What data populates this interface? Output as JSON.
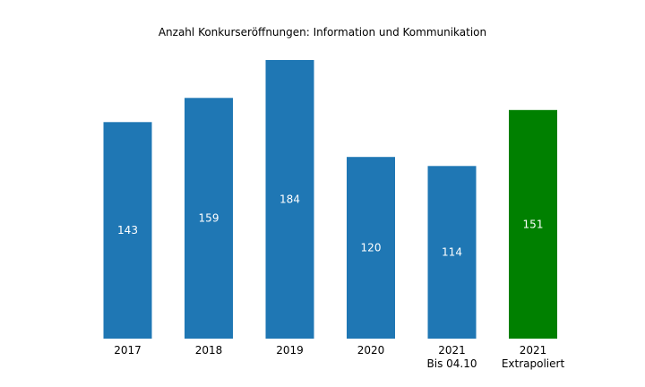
{
  "chart_data": {
    "type": "bar",
    "title": "Anzahl Konkurseröffnungen: Information und Kommunikation",
    "categories": [
      {
        "line1": "2017",
        "line2": ""
      },
      {
        "line1": "2018",
        "line2": ""
      },
      {
        "line1": "2019",
        "line2": ""
      },
      {
        "line1": "2020",
        "line2": ""
      },
      {
        "line1": "2021",
        "line2": "Bis 04.10"
      },
      {
        "line1": "2021",
        "line2": "Extrapoliert"
      }
    ],
    "values": [
      143,
      159,
      184,
      120,
      114,
      151
    ],
    "colors": [
      "#1f77b4",
      "#1f77b4",
      "#1f77b4",
      "#1f77b4",
      "#1f77b4",
      "#008000"
    ],
    "xlabel": "",
    "ylabel": "",
    "ylim": [
      0,
      184
    ],
    "grid": false,
    "axes_visible": false,
    "data_labels": true
  }
}
